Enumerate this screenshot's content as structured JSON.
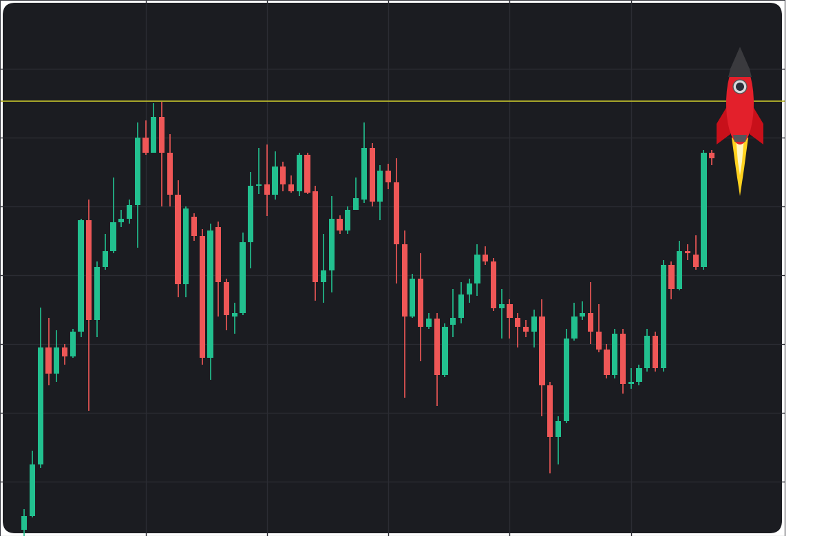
{
  "chart_data": {
    "type": "candlestick",
    "x": [
      0,
      1,
      2,
      3,
      4,
      5,
      6,
      7,
      8,
      9,
      10,
      11,
      12,
      13,
      14,
      15,
      16,
      17,
      18,
      19,
      20,
      21,
      22,
      23,
      24,
      25,
      26,
      27,
      28,
      29,
      30,
      31,
      32,
      33,
      34,
      35,
      36,
      37,
      38,
      39,
      40,
      41,
      42,
      43,
      44,
      45,
      46,
      47,
      48,
      49,
      50,
      51,
      52,
      53,
      54,
      55,
      56,
      57,
      58,
      59,
      60,
      61,
      62,
      63,
      64,
      65,
      66,
      67,
      68,
      69,
      70,
      71,
      72,
      73,
      74,
      75,
      76,
      77,
      78,
      79,
      80,
      81,
      82,
      83,
      84,
      85
    ],
    "open": [
      30,
      50,
      125,
      295,
      257,
      295,
      282,
      318,
      480,
      335,
      412,
      435,
      477,
      482,
      502,
      600,
      578,
      630,
      578,
      517,
      387,
      485,
      457,
      280,
      470,
      390,
      340,
      345,
      448,
      530,
      532,
      517,
      558,
      532,
      522,
      575,
      522,
      390,
      407,
      482,
      465,
      495,
      510,
      585,
      507,
      552,
      535,
      445,
      340,
      395,
      325,
      337,
      255,
      328,
      338,
      372,
      388,
      430,
      420,
      352,
      358,
      338,
      325,
      318,
      340,
      240,
      165,
      188,
      308,
      340,
      345,
      318,
      292,
      255,
      315,
      242,
      245,
      265,
      312,
      265,
      415,
      380,
      435,
      430,
      412,
      578
    ],
    "high": [
      60,
      145,
      353,
      338,
      320,
      300,
      322,
      482,
      510,
      420,
      460,
      542,
      495,
      510,
      622,
      625,
      650,
      652,
      605,
      538,
      500,
      490,
      467,
      475,
      478,
      395,
      360,
      462,
      550,
      585,
      590,
      580,
      565,
      545,
      578,
      578,
      530,
      460,
      515,
      487,
      500,
      542,
      622,
      592,
      560,
      562,
      570,
      465,
      402,
      432,
      345,
      345,
      330,
      380,
      390,
      395,
      445,
      442,
      425,
      380,
      365,
      345,
      335,
      350,
      365,
      245,
      195,
      322,
      360,
      362,
      390,
      358,
      300,
      322,
      322,
      265,
      270,
      322,
      318,
      422,
      420,
      450,
      445,
      458,
      582,
      582
    ],
    "low": [
      21,
      48,
      120,
      240,
      245,
      270,
      280,
      310,
      203,
      310,
      408,
      432,
      470,
      475,
      440,
      575,
      578,
      500,
      500,
      368,
      368,
      450,
      270,
      248,
      340,
      320,
      315,
      342,
      410,
      518,
      486,
      510,
      522,
      520,
      515,
      518,
      363,
      360,
      375,
      460,
      460,
      495,
      505,
      500,
      480,
      525,
      388,
      222,
      338,
      275,
      322,
      210,
      252,
      310,
      330,
      360,
      370,
      415,
      348,
      308,
      308,
      295,
      310,
      295,
      195,
      112,
      125,
      185,
      305,
      335,
      300,
      288,
      250,
      250,
      228,
      235,
      240,
      260,
      260,
      260,
      365,
      378,
      422,
      408,
      408,
      560
    ],
    "close": [
      50,
      125,
      295,
      257,
      295,
      282,
      318,
      480,
      335,
      412,
      435,
      477,
      482,
      502,
      600,
      578,
      630,
      578,
      517,
      387,
      497,
      457,
      280,
      465,
      390,
      342,
      345,
      448,
      530,
      532,
      517,
      558,
      532,
      522,
      575,
      520,
      390,
      407,
      482,
      465,
      495,
      512,
      585,
      507,
      552,
      535,
      445,
      340,
      395,
      325,
      337,
      255,
      325,
      338,
      372,
      388,
      430,
      420,
      352,
      358,
      338,
      325,
      318,
      340,
      240,
      165,
      188,
      308,
      340,
      345,
      318,
      292,
      255,
      315,
      242,
      245,
      265,
      312,
      265,
      415,
      380,
      435,
      432,
      412,
      578,
      570
    ],
    "up": {
      "color": "#22c08f"
    },
    "down": {
      "color": "#ef5757"
    },
    "lines": [
      {
        "value": 653,
        "color": "#b7b52c"
      }
    ],
    "xlim": [
      -3,
      94
    ],
    "xticks": [
      15,
      30,
      45,
      60,
      75
    ],
    "ylim": [
      21,
      800
    ],
    "yticks": [
      100,
      200,
      300,
      400,
      500,
      600,
      700
    ],
    "grid": true,
    "tick_labels": false
  }
}
